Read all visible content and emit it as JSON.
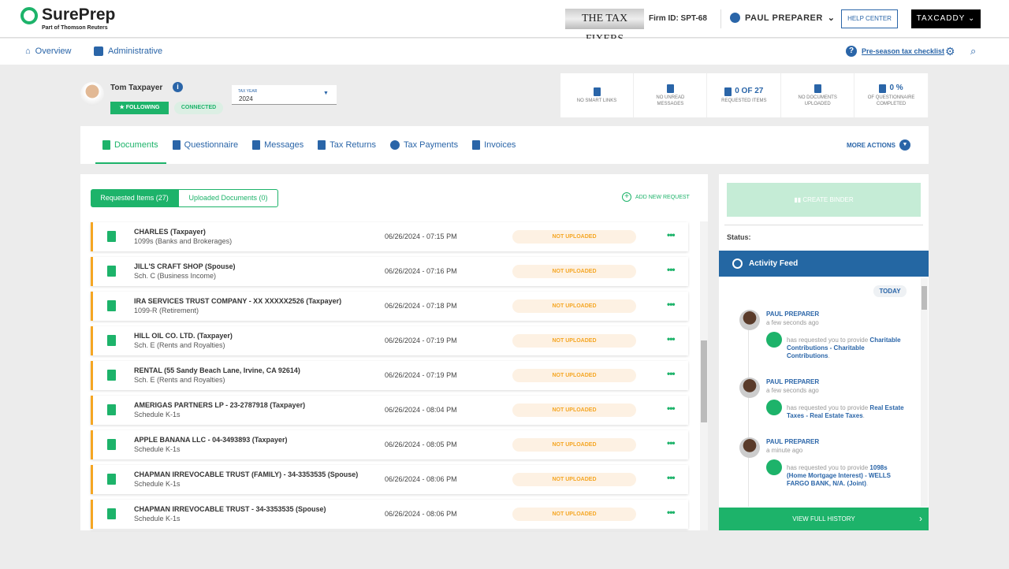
{
  "header": {
    "logo": "SurePrep",
    "logo_sub": "Part of Thomson Reuters",
    "firm_name": "THE TAX FIXERS",
    "firm_id": "Firm ID: SPT-68",
    "user": "PAUL PREPARER",
    "help": "HELP CENTER",
    "taxcaddy": "TAXCADDY"
  },
  "nav": {
    "overview": "Overview",
    "administrative": "Administrative",
    "checklist": "Pre-season tax checklist"
  },
  "client": {
    "name": "Tom Taxpayer",
    "following": "FOLLOWING",
    "connected": "CONNECTED",
    "tax_year_label": "TAX YEAR",
    "tax_year": "2024"
  },
  "stats": [
    {
      "value": "",
      "label": "NO SMART LINKS"
    },
    {
      "value": "",
      "label": "NO UNREAD MESSAGES"
    },
    {
      "value": "0 of 27",
      "label": "REQUESTED ITEMS"
    },
    {
      "value": "",
      "label": "NO DOCUMENTS UPLOADED"
    },
    {
      "value": "0 %",
      "label": "OF QUESTIONNAIRE COMPLETED"
    }
  ],
  "tabs": [
    {
      "label": "Documents",
      "active": true
    },
    {
      "label": "Questionnaire"
    },
    {
      "label": "Messages"
    },
    {
      "label": "Tax Returns"
    },
    {
      "label": "Tax Payments"
    },
    {
      "label": "Invoices"
    }
  ],
  "more_actions": "MORE ACTIONS",
  "docs": {
    "toggle_requested": "Requested Items (27)",
    "toggle_uploaded": "Uploaded Documents (0)",
    "add_request": "ADD NEW REQUEST",
    "items": [
      {
        "title": "CHARLES (Taxpayer)",
        "sub": "1099s (Banks and Brokerages)",
        "date": "06/26/2024 - 07:15 PM",
        "status": "NOT UPLOADED"
      },
      {
        "title": "JILL'S CRAFT SHOP (Spouse)",
        "sub": "Sch. C (Business Income)",
        "date": "06/26/2024 - 07:16 PM",
        "status": "NOT UPLOADED"
      },
      {
        "title": "IRA SERVICES TRUST COMPANY - XX XXXXX2526 (Taxpayer)",
        "sub": "1099-R (Retirement)",
        "date": "06/26/2024 - 07:18 PM",
        "status": "NOT UPLOADED"
      },
      {
        "title": "HILL OIL CO. LTD. (Taxpayer)",
        "sub": "Sch. E (Rents and Royalties)",
        "date": "06/26/2024 - 07:19 PM",
        "status": "NOT UPLOADED"
      },
      {
        "title": "RENTAL (55 Sandy Beach Lane, Irvine, CA 92614)",
        "sub": "Sch. E (Rents and Royalties)",
        "date": "06/26/2024 - 07:19 PM",
        "status": "NOT UPLOADED"
      },
      {
        "title": "AMERIGAS PARTNERS LP - 23-2787918 (Taxpayer)",
        "sub": "Schedule K-1s",
        "date": "06/26/2024 - 08:04 PM",
        "status": "NOT UPLOADED"
      },
      {
        "title": "APPLE BANANA LLC - 04-3493893 (Taxpayer)",
        "sub": "Schedule K-1s",
        "date": "06/26/2024 - 08:05 PM",
        "status": "NOT UPLOADED"
      },
      {
        "title": "CHAPMAN IRREVOCABLE TRUST (FAMILY) - 34-3353535 (Spouse)",
        "sub": "Schedule K-1s",
        "date": "06/26/2024 - 08:06 PM",
        "status": "NOT UPLOADED"
      },
      {
        "title": "CHAPMAN IRREVOCABLE TRUST - 34-3353535 (Spouse)",
        "sub": "Schedule K-1s",
        "date": "06/26/2024 - 08:06 PM",
        "status": "NOT UPLOADED"
      }
    ]
  },
  "side": {
    "create_binder": "CREATE BINDER",
    "status_label": "Status:",
    "activity_title": "Activity Feed",
    "today": "TODAY",
    "view_history": "VIEW FULL HISTORY",
    "feed": [
      {
        "name": "PAUL PREPARER",
        "time": "a few seconds ago",
        "text": "has requested you to provide",
        "item": "Charitable Contributions - Charitable Contributions"
      },
      {
        "name": "PAUL PREPARER",
        "time": "a few seconds ago",
        "text": "has requested you to provide",
        "item": "Real Estate Taxes - Real Estate Taxes"
      },
      {
        "name": "PAUL PREPARER",
        "time": "a minute ago",
        "text": "has requested you to provide",
        "item": "1098s (Home Mortgage Interest) - WELLS FARGO BANK, N/A. (Joint)"
      }
    ]
  },
  "colors": {
    "brand_green": "#1db36a",
    "brand_blue": "#2a65a8",
    "pending_orange": "#f5a623"
  }
}
